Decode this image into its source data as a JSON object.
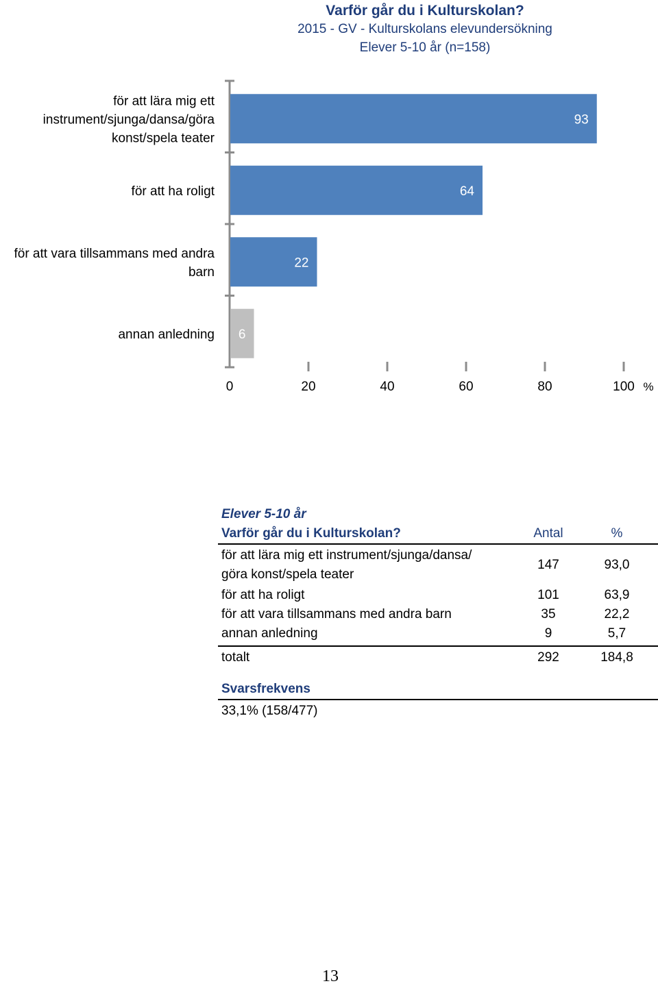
{
  "title": "Varför går du i Kulturskolan?",
  "subtitle1": "2015 - GV - Kulturskolans elevundersökning",
  "subtitle2": "Elever 5-10 år (n=158)",
  "chart_data": {
    "type": "bar",
    "orientation": "horizontal",
    "title": "Varför går du i Kulturskolan?",
    "categories": [
      [
        "för att lära mig ett",
        "instrument/sjunga/dansa/göra",
        "konst/spela teater"
      ],
      [
        "för att ha roligt"
      ],
      [
        "för att vara tillsammans med andra",
        "barn"
      ],
      [
        "annan anledning"
      ]
    ],
    "values": [
      93,
      64,
      22,
      6
    ],
    "value_labels": [
      "93",
      "64",
      "22",
      "6"
    ],
    "bar_colors": [
      "#4f81bd",
      "#4f81bd",
      "#4f81bd",
      "#bfbfbf"
    ],
    "xlim": [
      0,
      100
    ],
    "xticks": [
      0,
      20,
      40,
      60,
      80,
      100
    ],
    "x_unit": "%",
    "grid": false
  },
  "table": {
    "heading": "Elever 5-10 år",
    "col_question": "Varför går du i Kulturskolan?",
    "col_count": "Antal",
    "col_pct": "%",
    "rows": [
      {
        "label_line1": "för att lära mig ett instrument/sjunga/dansa/",
        "label_line2": "göra konst/spela teater",
        "count": "147",
        "pct": "93,0"
      },
      {
        "label": "för att ha roligt",
        "count": "101",
        "pct": "63,9"
      },
      {
        "label": "för att vara tillsammans med andra barn",
        "count": "35",
        "pct": "22,2"
      },
      {
        "label": "annan anledning",
        "count": "9",
        "pct": "5,7"
      }
    ],
    "total": {
      "label": "totalt",
      "count": "292",
      "pct": "184,8"
    }
  },
  "response_rate": {
    "label": "Svarsfrekvens",
    "value": "33,1% (158/477)"
  },
  "page_number": "13"
}
